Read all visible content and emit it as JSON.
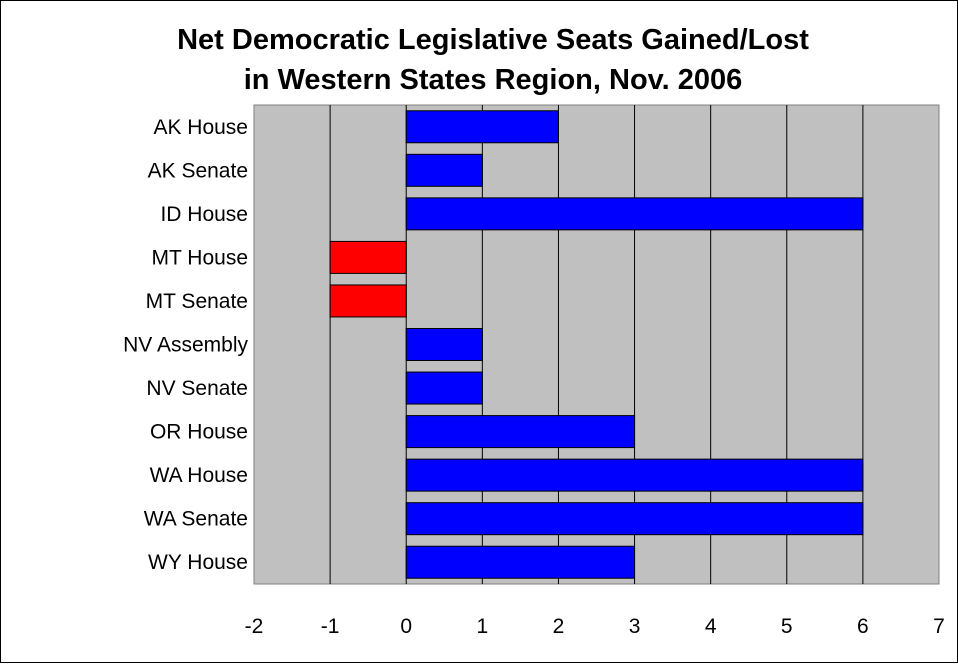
{
  "chart_data": {
    "type": "bar",
    "orientation": "horizontal",
    "title_lines": [
      "Net Democratic Legislative Seats Gained/Lost",
      "in Western States Region, Nov. 2006"
    ],
    "categories": [
      "AK House",
      "AK Senate",
      "ID House",
      "MT House",
      "MT Senate",
      "NV Assembly",
      "NV Senate",
      "OR House",
      "WA House",
      "WA Senate",
      "WY House"
    ],
    "values": [
      2,
      1,
      6,
      -1,
      -1,
      1,
      1,
      3,
      6,
      6,
      3
    ],
    "xlim": [
      -2,
      7
    ],
    "xticks": [
      "-2",
      "-1",
      "0",
      "1",
      "2",
      "3",
      "4",
      "5",
      "6",
      "7"
    ],
    "xlabel": "",
    "ylabel": "",
    "grid": true,
    "legend": "none",
    "colors": {
      "positive": "#0000ff",
      "negative": "#ff0000",
      "plot_background": "#c0c0c0",
      "gridline": "#000000"
    }
  }
}
